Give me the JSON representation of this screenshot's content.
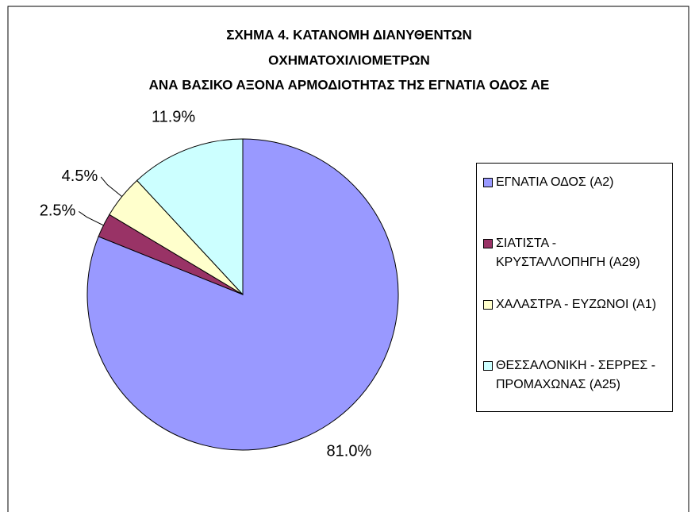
{
  "chart_data": {
    "type": "pie",
    "title": [
      "ΣΧΗΜΑ 4. ΚΑΤΑΝΟΜΗ ΔΙΑΝΥΘΕΝΤΩΝ",
      "ΟΧΗΜΑΤΟΧΙΛΙΟΜΕΤΡΩΝ",
      "ΑΝΑ ΒΑΣΙΚΟ ΑΞΟΝΑ ΑΡΜΟΔΙΟΤΗΤΑΣ ΤΗΣ ΕΓΝΑΤΙΑ ΟΔΟΣ ΑΕ"
    ],
    "categories": [
      "ΕΓΝΑΤΙΑ ΟΔΟΣ (Α2)",
      "ΣΙΑΤΙΣΤΑ - ΚΡΥΣΤΑΛΛΟΠΗΓΗ (Α29)",
      "ΧΑΛΑΣΤΡΑ - ΕΥΖΩΝΟΙ (Α1)",
      "ΘΕΣΣΑΛΟΝΙΚΗ - ΣΕΡΡΕΣ - ΠΡΟΜΑΧΩΝΑΣ (Α25)"
    ],
    "values": [
      81.0,
      2.5,
      4.5,
      11.9
    ],
    "value_labels": [
      "81.0%",
      "2.5%",
      "4.5%",
      "11.9%"
    ],
    "colors": [
      "#9999ff",
      "#993366",
      "#ffffcc",
      "#ccffff"
    ],
    "legend": "right"
  }
}
